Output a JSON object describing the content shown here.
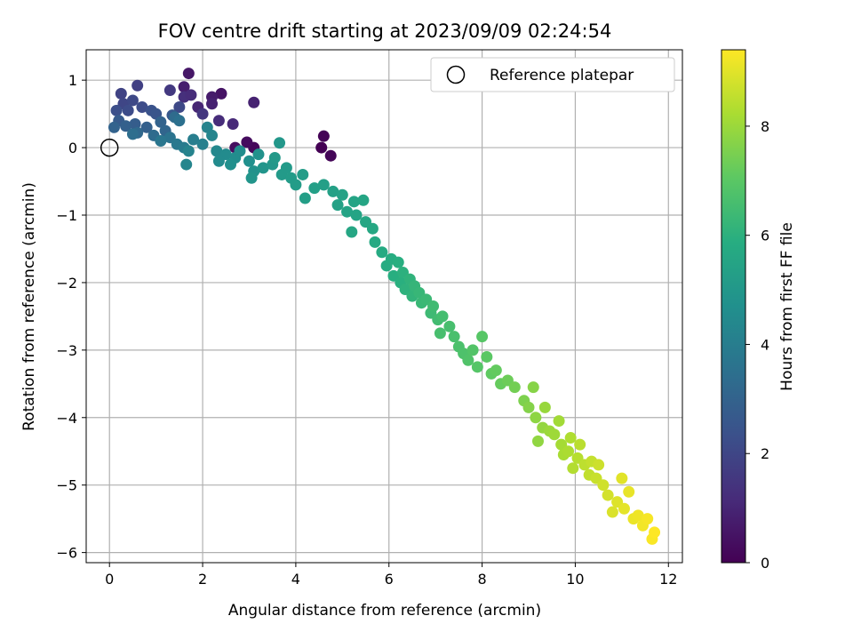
{
  "chart_data": {
    "type": "scatter",
    "title": "FOV centre drift starting at 2023/09/09 02:24:54",
    "xlabel": "Angular distance from reference (arcmin)",
    "ylabel": "Rotation from reference (arcmin)",
    "xlim": [
      -0.5,
      12.3
    ],
    "ylim": [
      -6.15,
      1.45
    ],
    "x_ticks": [
      0,
      2,
      4,
      6,
      8,
      10,
      12
    ],
    "y_ticks": [
      1,
      0,
      -1,
      -2,
      -3,
      -4,
      -5,
      -6
    ],
    "x_tick_labels": [
      "0",
      "2",
      "4",
      "6",
      "8",
      "10",
      "12"
    ],
    "y_tick_labels": [
      "1",
      "0",
      "−1",
      "−2",
      "−3",
      "−4",
      "−5",
      "−6"
    ],
    "grid": true,
    "colormap": "viridis",
    "colorbar": {
      "label": "Hours from first FF file",
      "range": [
        0,
        9.4
      ],
      "ticks": [
        0,
        2,
        4,
        6,
        8
      ],
      "tick_labels": [
        "0",
        "2",
        "4",
        "6",
        "8"
      ]
    },
    "legend": {
      "placement": "top-right",
      "entries": [
        "Reference platepar"
      ]
    },
    "reference_point": {
      "x": 0,
      "y": 0
    },
    "points": [
      {
        "x": 4.55,
        "y": 0.0,
        "t": 0.0
      },
      {
        "x": 4.6,
        "y": 0.17,
        "t": 0.05
      },
      {
        "x": 4.75,
        "y": -0.12,
        "t": 0.1
      },
      {
        "x": 3.1,
        "y": 0.0,
        "t": 0.2
      },
      {
        "x": 2.95,
        "y": 0.08,
        "t": 0.3
      },
      {
        "x": 2.7,
        "y": 0.0,
        "t": 0.35
      },
      {
        "x": 2.4,
        "y": 0.8,
        "t": 0.5
      },
      {
        "x": 1.7,
        "y": 1.1,
        "t": 0.6
      },
      {
        "x": 2.2,
        "y": 0.75,
        "t": 0.7
      },
      {
        "x": 1.6,
        "y": 0.9,
        "t": 0.8
      },
      {
        "x": 2.2,
        "y": 0.65,
        "t": 0.9
      },
      {
        "x": 1.9,
        "y": 0.6,
        "t": 1.0
      },
      {
        "x": 3.1,
        "y": 0.67,
        "t": 0.9
      },
      {
        "x": 2.65,
        "y": 0.35,
        "t": 1.1
      },
      {
        "x": 2.35,
        "y": 0.4,
        "t": 1.2
      },
      {
        "x": 1.6,
        "y": 0.75,
        "t": 1.3
      },
      {
        "x": 1.75,
        "y": 0.78,
        "t": 1.2
      },
      {
        "x": 2.0,
        "y": 0.5,
        "t": 1.5
      },
      {
        "x": 1.3,
        "y": 0.85,
        "t": 1.6
      },
      {
        "x": 0.6,
        "y": 0.92,
        "t": 1.8
      },
      {
        "x": 0.25,
        "y": 0.8,
        "t": 1.9
      },
      {
        "x": 0.3,
        "y": 0.65,
        "t": 2.0
      },
      {
        "x": 0.5,
        "y": 0.7,
        "t": 2.1
      },
      {
        "x": 0.7,
        "y": 0.6,
        "t": 2.2
      },
      {
        "x": 0.15,
        "y": 0.55,
        "t": 2.3
      },
      {
        "x": 0.4,
        "y": 0.55,
        "t": 2.2
      },
      {
        "x": 0.9,
        "y": 0.55,
        "t": 2.4
      },
      {
        "x": 1.0,
        "y": 0.5,
        "t": 2.5
      },
      {
        "x": 1.5,
        "y": 0.6,
        "t": 2.1
      },
      {
        "x": 1.35,
        "y": 0.48,
        "t": 2.6
      },
      {
        "x": 0.2,
        "y": 0.4,
        "t": 2.7
      },
      {
        "x": 0.55,
        "y": 0.35,
        "t": 2.8
      },
      {
        "x": 0.8,
        "y": 0.3,
        "t": 2.9
      },
      {
        "x": 0.1,
        "y": 0.3,
        "t": 3.0
      },
      {
        "x": 0.35,
        "y": 0.32,
        "t": 2.9
      },
      {
        "x": 1.1,
        "y": 0.38,
        "t": 3.0
      },
      {
        "x": 1.2,
        "y": 0.25,
        "t": 3.1
      },
      {
        "x": 0.6,
        "y": 0.22,
        "t": 3.2
      },
      {
        "x": 0.95,
        "y": 0.18,
        "t": 3.3
      },
      {
        "x": 0.5,
        "y": 0.2,
        "t": 3.4
      },
      {
        "x": 1.4,
        "y": 0.45,
        "t": 3.3
      },
      {
        "x": 1.5,
        "y": 0.4,
        "t": 3.5
      },
      {
        "x": 1.3,
        "y": 0.15,
        "t": 3.6
      },
      {
        "x": 1.1,
        "y": 0.1,
        "t": 3.7
      },
      {
        "x": 1.45,
        "y": 0.05,
        "t": 3.8
      },
      {
        "x": 1.6,
        "y": 0.0,
        "t": 3.9
      },
      {
        "x": 1.8,
        "y": 0.12,
        "t": 4.0
      },
      {
        "x": 2.0,
        "y": 0.05,
        "t": 4.1
      },
      {
        "x": 1.7,
        "y": -0.05,
        "t": 4.2
      },
      {
        "x": 2.1,
        "y": 0.3,
        "t": 4.2
      },
      {
        "x": 2.2,
        "y": 0.18,
        "t": 4.3
      },
      {
        "x": 1.65,
        "y": -0.25,
        "t": 4.3
      },
      {
        "x": 2.3,
        "y": -0.05,
        "t": 4.4
      },
      {
        "x": 2.5,
        "y": -0.1,
        "t": 4.5
      },
      {
        "x": 2.35,
        "y": -0.2,
        "t": 4.5
      },
      {
        "x": 2.7,
        "y": -0.15,
        "t": 4.6
      },
      {
        "x": 2.8,
        "y": -0.05,
        "t": 4.6
      },
      {
        "x": 2.6,
        "y": -0.25,
        "t": 4.7
      },
      {
        "x": 3.0,
        "y": -0.2,
        "t": 4.7
      },
      {
        "x": 3.1,
        "y": -0.35,
        "t": 4.8
      },
      {
        "x": 3.2,
        "y": -0.1,
        "t": 4.8
      },
      {
        "x": 3.3,
        "y": -0.3,
        "t": 4.9
      },
      {
        "x": 3.05,
        "y": -0.45,
        "t": 4.9
      },
      {
        "x": 3.5,
        "y": -0.25,
        "t": 5.0
      },
      {
        "x": 3.65,
        "y": 0.07,
        "t": 5.0
      },
      {
        "x": 3.55,
        "y": -0.15,
        "t": 5.05
      },
      {
        "x": 3.7,
        "y": -0.4,
        "t": 5.1
      },
      {
        "x": 3.8,
        "y": -0.3,
        "t": 5.1
      },
      {
        "x": 3.9,
        "y": -0.45,
        "t": 5.15
      },
      {
        "x": 4.0,
        "y": -0.55,
        "t": 5.2
      },
      {
        "x": 4.15,
        "y": -0.4,
        "t": 5.2
      },
      {
        "x": 4.2,
        "y": -0.75,
        "t": 5.25
      },
      {
        "x": 4.4,
        "y": -0.6,
        "t": 5.3
      },
      {
        "x": 4.6,
        "y": -0.55,
        "t": 5.3
      },
      {
        "x": 4.8,
        "y": -0.65,
        "t": 5.35
      },
      {
        "x": 4.9,
        "y": -0.85,
        "t": 5.4
      },
      {
        "x": 5.0,
        "y": -0.7,
        "t": 5.4
      },
      {
        "x": 5.1,
        "y": -0.95,
        "t": 5.45
      },
      {
        "x": 5.25,
        "y": -0.8,
        "t": 5.5
      },
      {
        "x": 5.3,
        "y": -1.0,
        "t": 5.5
      },
      {
        "x": 5.45,
        "y": -0.78,
        "t": 5.55
      },
      {
        "x": 5.2,
        "y": -1.25,
        "t": 5.6
      },
      {
        "x": 5.5,
        "y": -1.1,
        "t": 5.6
      },
      {
        "x": 5.65,
        "y": -1.2,
        "t": 5.65
      },
      {
        "x": 5.7,
        "y": -1.4,
        "t": 5.7
      },
      {
        "x": 5.85,
        "y": -1.55,
        "t": 5.75
      },
      {
        "x": 5.95,
        "y": -1.75,
        "t": 5.8
      },
      {
        "x": 6.05,
        "y": -1.65,
        "t": 5.85
      },
      {
        "x": 6.1,
        "y": -1.9,
        "t": 5.9
      },
      {
        "x": 6.2,
        "y": -1.7,
        "t": 5.9
      },
      {
        "x": 6.25,
        "y": -2.0,
        "t": 5.95
      },
      {
        "x": 6.3,
        "y": -1.85,
        "t": 6.0
      },
      {
        "x": 6.35,
        "y": -2.1,
        "t": 6.05
      },
      {
        "x": 6.45,
        "y": -1.95,
        "t": 6.1
      },
      {
        "x": 6.5,
        "y": -2.2,
        "t": 6.15
      },
      {
        "x": 6.55,
        "y": -2.05,
        "t": 6.2
      },
      {
        "x": 6.65,
        "y": -2.15,
        "t": 6.25
      },
      {
        "x": 6.7,
        "y": -2.3,
        "t": 6.3
      },
      {
        "x": 6.8,
        "y": -2.25,
        "t": 6.35
      },
      {
        "x": 6.9,
        "y": -2.45,
        "t": 6.4
      },
      {
        "x": 6.95,
        "y": -2.35,
        "t": 6.45
      },
      {
        "x": 7.05,
        "y": -2.55,
        "t": 6.5
      },
      {
        "x": 7.15,
        "y": -2.5,
        "t": 6.55
      },
      {
        "x": 7.3,
        "y": -2.65,
        "t": 6.6
      },
      {
        "x": 7.1,
        "y": -2.75,
        "t": 6.6
      },
      {
        "x": 7.4,
        "y": -2.8,
        "t": 6.65
      },
      {
        "x": 7.5,
        "y": -2.95,
        "t": 6.7
      },
      {
        "x": 7.6,
        "y": -3.05,
        "t": 6.75
      },
      {
        "x": 7.7,
        "y": -3.15,
        "t": 6.8
      },
      {
        "x": 7.8,
        "y": -3.0,
        "t": 6.85
      },
      {
        "x": 7.9,
        "y": -3.25,
        "t": 6.9
      },
      {
        "x": 8.0,
        "y": -2.8,
        "t": 6.95
      },
      {
        "x": 8.1,
        "y": -3.1,
        "t": 7.0
      },
      {
        "x": 8.2,
        "y": -3.35,
        "t": 7.1
      },
      {
        "x": 8.3,
        "y": -3.3,
        "t": 7.15
      },
      {
        "x": 8.4,
        "y": -3.5,
        "t": 7.2
      },
      {
        "x": 8.55,
        "y": -3.45,
        "t": 7.3
      },
      {
        "x": 8.7,
        "y": -3.55,
        "t": 7.4
      },
      {
        "x": 8.9,
        "y": -3.75,
        "t": 7.55
      },
      {
        "x": 9.0,
        "y": -3.85,
        "t": 7.65
      },
      {
        "x": 9.1,
        "y": -3.55,
        "t": 7.7
      },
      {
        "x": 9.15,
        "y": -4.0,
        "t": 7.8
      },
      {
        "x": 9.2,
        "y": -4.35,
        "t": 7.85
      },
      {
        "x": 9.3,
        "y": -4.15,
        "t": 7.9
      },
      {
        "x": 9.35,
        "y": -3.85,
        "t": 7.95
      },
      {
        "x": 9.45,
        "y": -4.2,
        "t": 8.0
      },
      {
        "x": 9.55,
        "y": -4.25,
        "t": 8.05
      },
      {
        "x": 9.65,
        "y": -4.05,
        "t": 8.1
      },
      {
        "x": 9.7,
        "y": -4.4,
        "t": 8.15
      },
      {
        "x": 9.75,
        "y": -4.55,
        "t": 8.2
      },
      {
        "x": 9.85,
        "y": -4.5,
        "t": 8.25
      },
      {
        "x": 9.9,
        "y": -4.3,
        "t": 8.3
      },
      {
        "x": 9.95,
        "y": -4.75,
        "t": 8.35
      },
      {
        "x": 10.05,
        "y": -4.6,
        "t": 8.4
      },
      {
        "x": 10.1,
        "y": -4.4,
        "t": 8.45
      },
      {
        "x": 10.2,
        "y": -4.7,
        "t": 8.5
      },
      {
        "x": 10.3,
        "y": -4.85,
        "t": 8.55
      },
      {
        "x": 10.35,
        "y": -4.65,
        "t": 8.6
      },
      {
        "x": 10.45,
        "y": -4.9,
        "t": 8.65
      },
      {
        "x": 10.5,
        "y": -4.7,
        "t": 8.7
      },
      {
        "x": 10.6,
        "y": -5.0,
        "t": 8.75
      },
      {
        "x": 10.7,
        "y": -5.15,
        "t": 8.8
      },
      {
        "x": 10.8,
        "y": -5.4,
        "t": 8.9
      },
      {
        "x": 10.9,
        "y": -5.25,
        "t": 8.95
      },
      {
        "x": 11.0,
        "y": -4.9,
        "t": 9.0
      },
      {
        "x": 11.05,
        "y": -5.35,
        "t": 9.05
      },
      {
        "x": 11.15,
        "y": -5.1,
        "t": 9.1
      },
      {
        "x": 11.25,
        "y": -5.5,
        "t": 9.15
      },
      {
        "x": 11.35,
        "y": -5.45,
        "t": 9.2
      },
      {
        "x": 11.45,
        "y": -5.6,
        "t": 9.25
      },
      {
        "x": 11.55,
        "y": -5.5,
        "t": 9.3
      },
      {
        "x": 11.65,
        "y": -5.8,
        "t": 9.35
      },
      {
        "x": 11.7,
        "y": -5.7,
        "t": 9.4
      }
    ]
  }
}
